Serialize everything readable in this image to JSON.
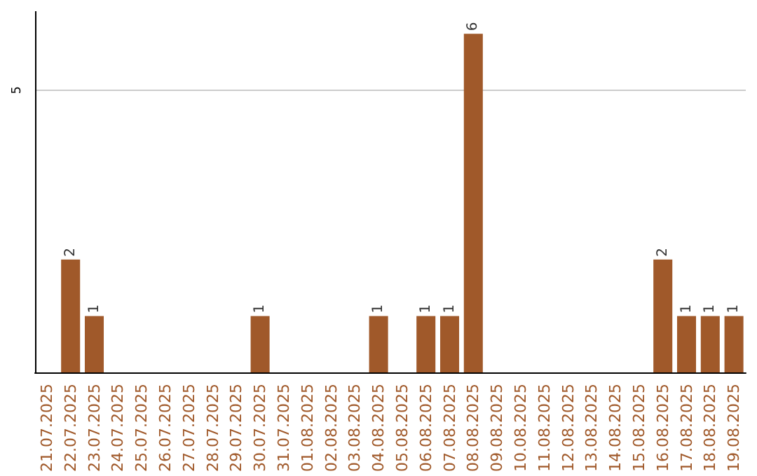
{
  "chart_data": {
    "type": "bar",
    "categories": [
      "21.07.2025",
      "22.07.2025",
      "23.07.2025",
      "24.07.2025",
      "25.07.2025",
      "26.07.2025",
      "27.07.2025",
      "28.07.2025",
      "29.07.2025",
      "30.07.2025",
      "31.07.2025",
      "01.08.2025",
      "02.08.2025",
      "03.08.2025",
      "04.08.2025",
      "05.08.2025",
      "06.08.2025",
      "07.08.2025",
      "08.08.2025",
      "09.08.2025",
      "10.08.2025",
      "11.08.2025",
      "12.08.2025",
      "13.08.2025",
      "14.08.2025",
      "15.08.2025",
      "16.08.2025",
      "17.08.2025",
      "18.08.2025",
      "19.08.2025"
    ],
    "values": [
      0,
      2,
      1,
      0,
      0,
      0,
      0,
      0,
      0,
      1,
      0,
      0,
      0,
      0,
      1,
      0,
      1,
      1,
      6,
      0,
      0,
      0,
      0,
      0,
      0,
      0,
      2,
      1,
      1,
      1
    ],
    "value_labels": [
      null,
      "2",
      "1",
      null,
      null,
      null,
      null,
      null,
      null,
      "1",
      null,
      null,
      null,
      null,
      "1",
      null,
      "1",
      "1",
      "6",
      null,
      null,
      null,
      null,
      null,
      null,
      null,
      "2",
      "1",
      "1",
      "1"
    ],
    "color": "#a0592a",
    "ylim": [
      0,
      6.4
    ],
    "yticks": [
      5
    ],
    "grid": "y"
  }
}
